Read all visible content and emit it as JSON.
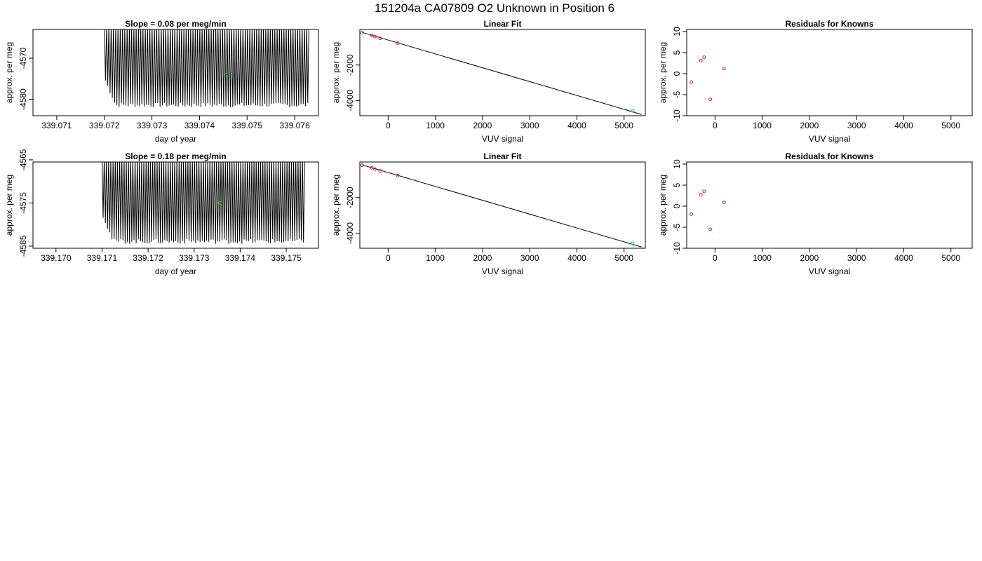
{
  "title": "151204a      CA07809   O2 Unknown in Position  6",
  "colors": {
    "known": "#d62728",
    "unknown": "#22cc22",
    "line": "#000000"
  },
  "chart_data": [
    {
      "type": "line",
      "title": "Slope =  0.08  per meg/min",
      "xlabel": "day of year",
      "ylabel": "approx. per meg",
      "xlim": [
        339.0705,
        339.0765
      ],
      "ylim": [
        -4584,
        -4563
      ],
      "x_ticks": [
        "339.071",
        "339.072",
        "339.073",
        "339.074",
        "339.075",
        "339.076"
      ],
      "y_ticks": [
        "-4570",
        "-4580"
      ],
      "trace": {
        "x_start": 339.072,
        "x_end": 339.0763,
        "cycles": 90,
        "high": -4563,
        "low": -4582
      },
      "marker": {
        "x": 339.07455,
        "y": -4574
      }
    },
    {
      "type": "scatter",
      "title": "Linear Fit",
      "xlabel": "VUV signal",
      "ylabel": "approx. per meg",
      "xlim": [
        -600,
        5450
      ],
      "ylim": [
        -4850,
        0
      ],
      "x_ticks": [
        "0",
        "1000",
        "2000",
        "3000",
        "4000",
        "5000"
      ],
      "y_ticks": [
        "-2000",
        "-4000"
      ],
      "line": {
        "x": [
          -550,
          5370
        ],
        "y": [
          -165,
          -4780
        ]
      },
      "knowns": [
        {
          "x": -550,
          "y": -180
        },
        {
          "x": -350,
          "y": -330
        },
        {
          "x": -280,
          "y": -400
        },
        {
          "x": -170,
          "y": -500
        },
        {
          "x": 200,
          "y": -770
        }
      ],
      "unknown": {
        "x": 5180,
        "y": -4570
      }
    },
    {
      "type": "scatter",
      "title": "Residuals for Knowns",
      "xlabel": "VUV signal",
      "ylabel": "approx. per meg",
      "xlim": [
        -600,
        5450
      ],
      "ylim": [
        -10,
        10.5
      ],
      "x_ticks": [
        "0",
        "1000",
        "2000",
        "3000",
        "4000",
        "5000"
      ],
      "y_ticks": [
        "-10",
        "-5",
        "0",
        "5",
        "10"
      ],
      "knowns": [
        {
          "x": -500,
          "y": -2
        },
        {
          "x": -300,
          "y": 3.1
        },
        {
          "x": -230,
          "y": 3.9
        },
        {
          "x": -100,
          "y": -6.1
        },
        {
          "x": 190,
          "y": 1.2
        }
      ]
    },
    {
      "type": "line",
      "title": "Slope =  0.18  per meg/min",
      "xlabel": "day of year",
      "ylabel": "approx. per meg",
      "xlim": [
        339.1695,
        339.1757
      ],
      "ylim": [
        -4585.5,
        -4565.5
      ],
      "x_ticks": [
        "339.170",
        "339.171",
        "339.172",
        "339.173",
        "339.174",
        "339.175"
      ],
      "y_ticks": [
        "-4565",
        "-4575",
        "-4585"
      ],
      "trace": {
        "x_start": 339.171,
        "x_end": 339.1754,
        "cycles": 92,
        "high": -4565.5,
        "low": -4584.5
      },
      "marker": {
        "x": 339.17355,
        "y": -4575
      }
    },
    {
      "type": "scatter",
      "title": "Linear Fit",
      "xlabel": "VUV signal",
      "ylabel": "approx. per meg",
      "xlim": [
        -600,
        5450
      ],
      "ylim": [
        -4850,
        0
      ],
      "x_ticks": [
        "0",
        "1000",
        "2000",
        "3000",
        "4000",
        "5000"
      ],
      "y_ticks": [
        "-2000",
        "-4000"
      ],
      "line": {
        "x": [
          -550,
          5370
        ],
        "y": [
          -165,
          -4780
        ]
      },
      "knowns": [
        {
          "x": -550,
          "y": -180
        },
        {
          "x": -350,
          "y": -330
        },
        {
          "x": -280,
          "y": -400
        },
        {
          "x": -170,
          "y": -500
        },
        {
          "x": 200,
          "y": -770
        }
      ],
      "unknown": {
        "x": 5180,
        "y": -4570
      }
    },
    {
      "type": "scatter",
      "title": "Residuals for Knowns",
      "xlabel": "VUV signal",
      "ylabel": "approx. per meg",
      "xlim": [
        -600,
        5450
      ],
      "ylim": [
        -10,
        10.5
      ],
      "x_ticks": [
        "0",
        "1000",
        "2000",
        "3000",
        "4000",
        "5000"
      ],
      "y_ticks": [
        "-10",
        "-5",
        "0",
        "5",
        "10"
      ],
      "knowns": [
        {
          "x": -500,
          "y": -1.9
        },
        {
          "x": -300,
          "y": 2.7
        },
        {
          "x": -230,
          "y": 3.5
        },
        {
          "x": -100,
          "y": -5.5
        },
        {
          "x": 190,
          "y": 0.9
        }
      ]
    }
  ]
}
